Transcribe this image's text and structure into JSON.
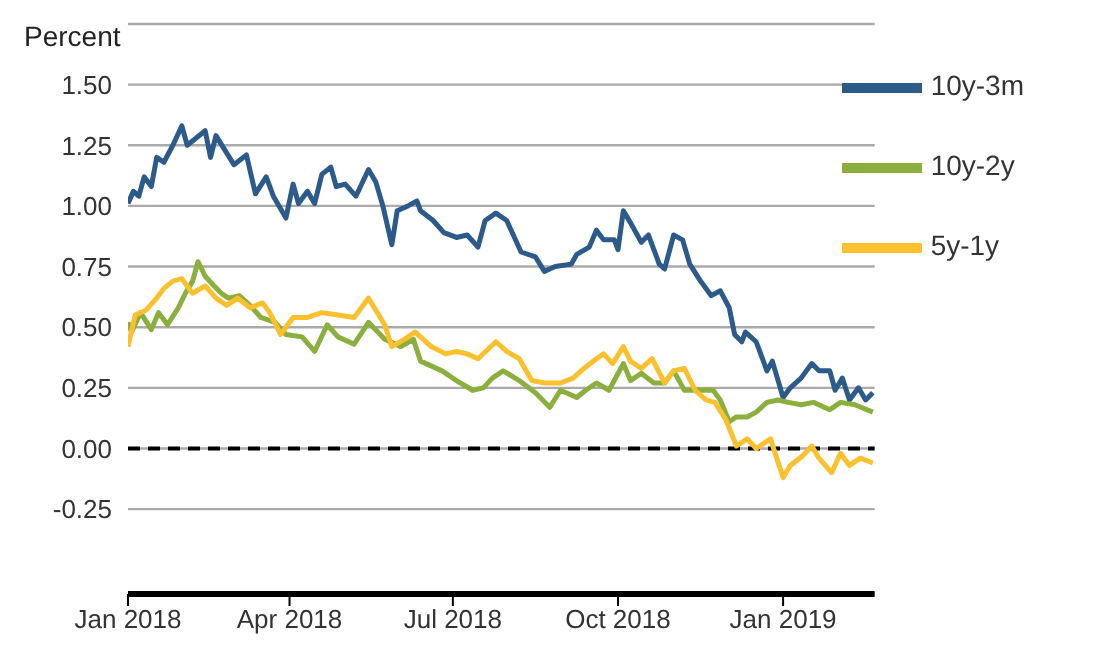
{
  "chart_data": {
    "type": "line",
    "ylabel": "Percent",
    "xlim": [
      "2018-01-01",
      "2019-02-21"
    ],
    "xticks": [
      {
        "value": "2018-01-01",
        "label": "Jan 2018"
      },
      {
        "value": "2018-04-01",
        "label": "Apr 2018"
      },
      {
        "value": "2018-07-01",
        "label": "Jul 2018"
      },
      {
        "value": "2018-10-01",
        "label": "Oct 2018"
      },
      {
        "value": "2019-01-01",
        "label": "Jan 2019"
      }
    ],
    "ylim": [
      -0.6,
      1.75
    ],
    "yticks": [
      {
        "value": -0.25,
        "label": "-0.25"
      },
      {
        "value": 0,
        "label": "0.00"
      },
      {
        "value": 0.25,
        "label": "0.25"
      },
      {
        "value": 0.5,
        "label": "0.50"
      },
      {
        "value": 0.75,
        "label": "0.75"
      },
      {
        "value": 1,
        "label": "1.00"
      },
      {
        "value": 1.25,
        "label": "1.25"
      },
      {
        "value": 1.5,
        "label": "1.50"
      }
    ],
    "grid": "y",
    "legend": "top right",
    "line_style": "solid",
    "marker": "none",
    "ref_lines": [
      {
        "axis": "y",
        "value": 0,
        "color": "#000000",
        "line_style": "dashed"
      }
    ],
    "series": [
      {
        "name": "10y-3m",
        "color": "#2c5a8a",
        "x": [
          "2018-01-01",
          "2018-01-04",
          "2018-01-07",
          "2018-01-10",
          "2018-01-14",
          "2018-01-17",
          "2018-01-21",
          "2018-01-26",
          "2018-01-31",
          "2018-02-03",
          "2018-02-08",
          "2018-02-13",
          "2018-02-16",
          "2018-02-19",
          "2018-02-24",
          "2018-03-01",
          "2018-03-08",
          "2018-03-13",
          "2018-03-19",
          "2018-03-23",
          "2018-03-30",
          "2018-04-03",
          "2018-04-06",
          "2018-04-11",
          "2018-04-15",
          "2018-04-19",
          "2018-04-24",
          "2018-04-27",
          "2018-05-02",
          "2018-05-08",
          "2018-05-15",
          "2018-05-19",
          "2018-05-23",
          "2018-05-28",
          "2018-05-31",
          "2018-06-06",
          "2018-06-11",
          "2018-06-13",
          "2018-06-20",
          "2018-06-26",
          "2018-07-03",
          "2018-07-09",
          "2018-07-15",
          "2018-07-19",
          "2018-07-25",
          "2018-07-31",
          "2018-08-08",
          "2018-08-16",
          "2018-08-21",
          "2018-08-27",
          "2018-09-05",
          "2018-09-08",
          "2018-09-15",
          "2018-09-19",
          "2018-09-23",
          "2018-09-29",
          "2018-10-01",
          "2018-10-04",
          "2018-10-08",
          "2018-10-14",
          "2018-10-18",
          "2018-10-24",
          "2018-10-27",
          "2018-11-01",
          "2018-11-06",
          "2018-11-10",
          "2018-11-16",
          "2018-11-22",
          "2018-11-27",
          "2018-12-02",
          "2018-12-05",
          "2018-12-09",
          "2018-12-11",
          "2018-12-17",
          "2018-12-19",
          "2018-12-23",
          "2018-12-26",
          "2019-01-01",
          "2019-01-05",
          "2019-01-11",
          "2019-01-17",
          "2019-01-21",
          "2019-01-27",
          "2019-01-30",
          "2019-02-03",
          "2019-02-07",
          "2019-02-12",
          "2019-02-16",
          "2019-02-20"
        ],
        "values": [
          1.01,
          1.06,
          1.04,
          1.12,
          1.08,
          1.2,
          1.18,
          1.25,
          1.33,
          1.25,
          1.28,
          1.31,
          1.2,
          1.29,
          1.23,
          1.17,
          1.21,
          1.05,
          1.12,
          1.04,
          0.95,
          1.09,
          1.01,
          1.06,
          1.01,
          1.13,
          1.16,
          1.08,
          1.09,
          1.04,
          1.15,
          1.1,
          1.0,
          0.84,
          0.98,
          1.0,
          1.02,
          0.98,
          0.94,
          0.89,
          0.87,
          0.88,
          0.83,
          0.94,
          0.97,
          0.94,
          0.81,
          0.79,
          0.73,
          0.75,
          0.76,
          0.8,
          0.83,
          0.9,
          0.86,
          0.86,
          0.82,
          0.98,
          0.93,
          0.85,
          0.88,
          0.76,
          0.74,
          0.88,
          0.86,
          0.76,
          0.69,
          0.63,
          0.65,
          0.58,
          0.47,
          0.44,
          0.48,
          0.44,
          0.4,
          0.32,
          0.36,
          0.21,
          0.25,
          0.29,
          0.35,
          0.32,
          0.32,
          0.24,
          0.29,
          0.2,
          0.25,
          0.2,
          0.23
        ]
      },
      {
        "name": "10y-2y",
        "color": "#8aaf3c",
        "x": [
          "2018-01-01",
          "2018-01-03",
          "2018-01-08",
          "2018-01-14",
          "2018-01-18",
          "2018-01-23",
          "2018-01-29",
          "2018-02-02",
          "2018-02-06",
          "2018-02-09",
          "2018-02-13",
          "2018-02-18",
          "2018-02-22",
          "2018-02-26",
          "2018-03-04",
          "2018-03-10",
          "2018-03-16",
          "2018-03-24",
          "2018-03-30",
          "2018-04-08",
          "2018-04-15",
          "2018-04-22",
          "2018-04-28",
          "2018-05-07",
          "2018-05-15",
          "2018-05-24",
          "2018-06-02",
          "2018-06-09",
          "2018-06-13",
          "2018-06-25",
          "2018-07-03",
          "2018-07-12",
          "2018-07-18",
          "2018-07-23",
          "2018-07-29",
          "2018-08-07",
          "2018-08-16",
          "2018-08-24",
          "2018-08-30",
          "2018-09-08",
          "2018-09-13",
          "2018-09-19",
          "2018-09-26",
          "2018-10-04",
          "2018-10-08",
          "2018-10-14",
          "2018-10-21",
          "2018-10-27",
          "2018-11-01",
          "2018-11-07",
          "2018-11-16",
          "2018-11-23",
          "2018-11-27",
          "2018-12-02",
          "2018-12-06",
          "2018-12-12",
          "2018-12-17",
          "2018-12-23",
          "2018-12-29",
          "2019-01-04",
          "2019-01-11",
          "2019-01-18",
          "2019-01-27",
          "2019-02-02",
          "2019-02-10",
          "2019-02-20"
        ],
        "values": [
          0.52,
          0.48,
          0.56,
          0.49,
          0.56,
          0.51,
          0.58,
          0.64,
          0.69,
          0.77,
          0.71,
          0.67,
          0.64,
          0.62,
          0.63,
          0.59,
          0.54,
          0.52,
          0.47,
          0.46,
          0.4,
          0.51,
          0.46,
          0.43,
          0.52,
          0.45,
          0.42,
          0.45,
          0.36,
          0.32,
          0.28,
          0.24,
          0.25,
          0.29,
          0.32,
          0.28,
          0.23,
          0.17,
          0.24,
          0.21,
          0.24,
          0.27,
          0.24,
          0.35,
          0.28,
          0.31,
          0.27,
          0.27,
          0.32,
          0.24,
          0.24,
          0.24,
          0.2,
          0.11,
          0.13,
          0.13,
          0.15,
          0.19,
          0.2,
          0.19,
          0.18,
          0.19,
          0.16,
          0.19,
          0.18,
          0.15
        ]
      },
      {
        "name": "5y-1y",
        "color": "#fbc02d",
        "x": [
          "2018-01-01",
          "2018-01-05",
          "2018-01-11",
          "2018-01-17",
          "2018-01-21",
          "2018-01-26",
          "2018-01-31",
          "2018-02-06",
          "2018-02-13",
          "2018-02-19",
          "2018-02-25",
          "2018-03-03",
          "2018-03-10",
          "2018-03-17",
          "2018-03-21",
          "2018-03-27",
          "2018-04-03",
          "2018-04-11",
          "2018-04-19",
          "2018-04-28",
          "2018-05-07",
          "2018-05-15",
          "2018-05-24",
          "2018-05-28",
          "2018-06-04",
          "2018-06-10",
          "2018-06-19",
          "2018-06-27",
          "2018-07-03",
          "2018-07-09",
          "2018-07-15",
          "2018-07-25",
          "2018-07-31",
          "2018-08-07",
          "2018-08-14",
          "2018-08-21",
          "2018-08-30",
          "2018-09-06",
          "2018-09-12",
          "2018-09-19",
          "2018-09-23",
          "2018-09-28",
          "2018-10-04",
          "2018-10-08",
          "2018-10-14",
          "2018-10-20",
          "2018-10-27",
          "2018-11-01",
          "2018-11-07",
          "2018-11-13",
          "2018-11-19",
          "2018-11-24",
          "2018-11-30",
          "2018-12-06",
          "2018-12-12",
          "2018-12-17",
          "2018-12-25",
          "2018-12-28",
          "2019-01-01",
          "2019-01-05",
          "2019-01-12",
          "2019-01-17",
          "2019-01-21",
          "2019-01-28",
          "2019-02-02",
          "2019-02-07",
          "2019-02-13",
          "2019-02-20"
        ],
        "values": [
          0.42,
          0.55,
          0.57,
          0.62,
          0.66,
          0.69,
          0.7,
          0.64,
          0.67,
          0.62,
          0.59,
          0.62,
          0.58,
          0.6,
          0.56,
          0.47,
          0.54,
          0.54,
          0.56,
          0.55,
          0.54,
          0.62,
          0.51,
          0.42,
          0.45,
          0.48,
          0.42,
          0.39,
          0.4,
          0.39,
          0.37,
          0.44,
          0.4,
          0.37,
          0.28,
          0.27,
          0.27,
          0.29,
          0.33,
          0.37,
          0.39,
          0.35,
          0.42,
          0.36,
          0.33,
          0.37,
          0.27,
          0.32,
          0.33,
          0.24,
          0.2,
          0.19,
          0.12,
          0.01,
          0.04,
          0.0,
          0.04,
          -0.03,
          -0.12,
          -0.07,
          -0.03,
          0.01,
          -0.04,
          -0.1,
          -0.02,
          -0.07,
          -0.04,
          -0.06
        ]
      }
    ]
  }
}
